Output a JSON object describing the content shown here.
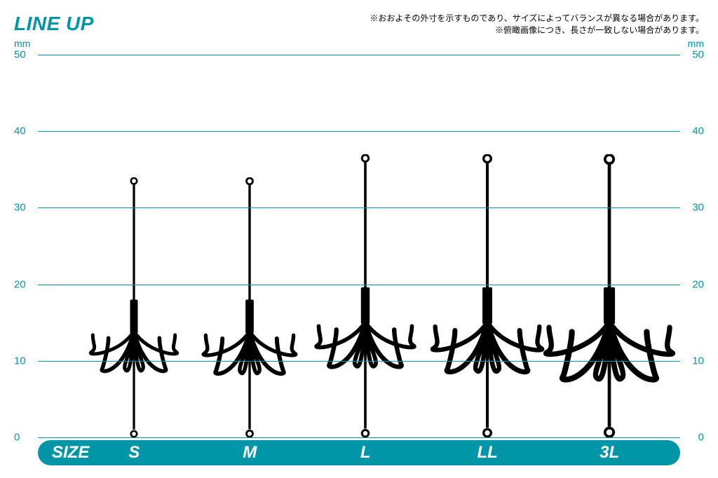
{
  "title": {
    "text": "LINE UP",
    "color": "#0096a8",
    "fontsize": 28
  },
  "disclaimers": [
    "※おおよその外寸を示すものであり、サイズによってバランスが異なる場合があります。",
    "※俯瞰画像につき、長さが一致しない場合があります。"
  ],
  "chart": {
    "type": "size-comparison",
    "y_axis": {
      "unit_label": "mm",
      "unit_color": "#0096a8",
      "min": 0,
      "max": 50,
      "tick_step": 10,
      "ticks": [
        0,
        10,
        20,
        30,
        40,
        50
      ],
      "tick_color": "#0096a8",
      "tick_fontsize": 15
    },
    "gridline_color": "#0096a8",
    "background_color": "#ffffff",
    "items": [
      {
        "label": "S",
        "height_mm": 34,
        "width_mm": 15,
        "x_percent": 15
      },
      {
        "label": "M",
        "height_mm": 34,
        "width_mm": 16,
        "x_percent": 33
      },
      {
        "label": "L",
        "height_mm": 37,
        "width_mm": 17,
        "x_percent": 51
      },
      {
        "label": "LL",
        "height_mm": 37,
        "width_mm": 19,
        "x_percent": 70
      },
      {
        "label": "3L",
        "height_mm": 37,
        "width_mm": 22,
        "x_percent": 89
      }
    ],
    "hook_color": "#000000"
  },
  "size_bar": {
    "head_label": "SIZE",
    "bg_color": "#0096a8",
    "text_color": "#ffffff",
    "height": 36,
    "fontsize": 24
  }
}
